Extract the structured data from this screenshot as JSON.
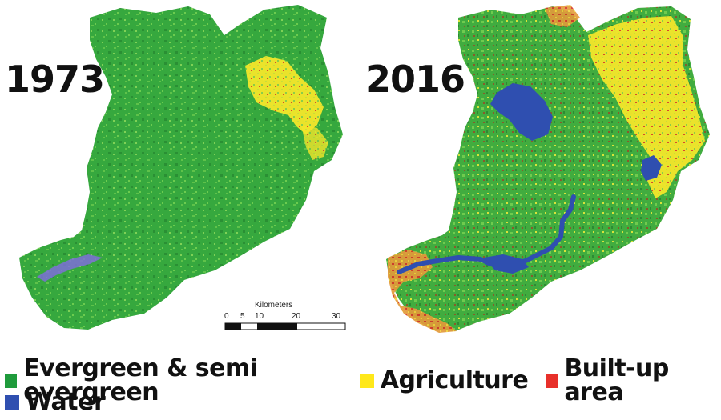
{
  "years": {
    "left": "1973",
    "right": "2016"
  },
  "scale_bar": {
    "title": "Kilometers",
    "ticks": [
      "0",
      "5",
      "10",
      "20",
      "30"
    ]
  },
  "legend": [
    {
      "label": "Evergreen & semi evergreen",
      "color": "#1f9b3c"
    },
    {
      "label": "Agriculture",
      "color": "#ffe81a"
    },
    {
      "label": "Built-up area",
      "color": "#e8302a"
    },
    {
      "label": "Water",
      "color": "#2f4fb0"
    }
  ]
}
